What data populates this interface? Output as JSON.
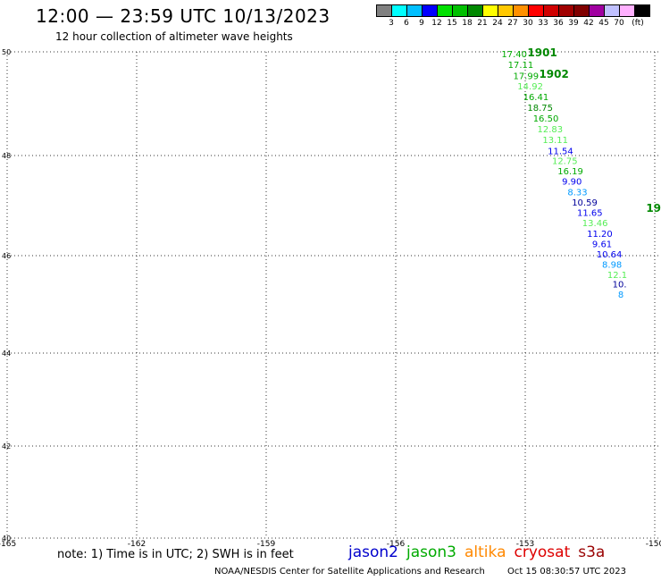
{
  "header": {
    "title": "12:00 — 23:59 UTC 10/13/2023",
    "subtitle": "12 hour collection of altimeter wave heights"
  },
  "scale": {
    "unit_label": "(ft)",
    "colors": [
      "#808080",
      "#00ffff",
      "#00bfff",
      "#0000ff",
      "#00e000",
      "#00c000",
      "#008800",
      "#ffff00",
      "#ffc800",
      "#ff9000",
      "#ff0000",
      "#d00000",
      "#a00000",
      "#800000",
      "#a000a0",
      "#c0c0ff",
      "#ffb0ff",
      "#000000"
    ],
    "labels": [
      "3",
      "6",
      "9",
      "12",
      "15",
      "18",
      "21",
      "24",
      "27",
      "30",
      "33",
      "36",
      "39",
      "42",
      "45",
      "70"
    ]
  },
  "axes": {
    "x_ticks": [
      "-165",
      "-162",
      "-159",
      "-156",
      "-153",
      "-150"
    ],
    "y_ticks": [
      "50",
      "48",
      "46",
      "44",
      "42",
      "40"
    ]
  },
  "chart_data": {
    "type": "scatter",
    "xlim": [
      -165,
      -150
    ],
    "ylim": [
      40,
      50
    ],
    "grid": true,
    "points": [
      {
        "x": -153.55,
        "y": 49.95,
        "value": "17.40",
        "color": "#00aa00"
      },
      {
        "x": -153.4,
        "y": 49.74,
        "value": "17.11",
        "color": "#00aa00"
      },
      {
        "x": -153.28,
        "y": 49.53,
        "value": "17.99",
        "color": "#00aa00"
      },
      {
        "x": -153.18,
        "y": 49.33,
        "value": "14.92",
        "color": "#55ee55"
      },
      {
        "x": -153.05,
        "y": 49.12,
        "value": "16.41",
        "color": "#00aa00"
      },
      {
        "x": -152.95,
        "y": 48.91,
        "value": "18.75",
        "color": "#008800"
      },
      {
        "x": -152.82,
        "y": 48.71,
        "value": "16.50",
        "color": "#00aa00"
      },
      {
        "x": -152.72,
        "y": 48.5,
        "value": "12.83",
        "color": "#55ee55"
      },
      {
        "x": -152.6,
        "y": 48.29,
        "value": "13.11",
        "color": "#55ee55"
      },
      {
        "x": -152.48,
        "y": 48.08,
        "value": "11.54",
        "color": "#0000ee"
      },
      {
        "x": -152.38,
        "y": 47.88,
        "value": "12.75",
        "color": "#55ee55"
      },
      {
        "x": -152.25,
        "y": 47.68,
        "value": "16.19",
        "color": "#00aa00"
      },
      {
        "x": -152.15,
        "y": 47.47,
        "value": "9.90",
        "color": "#0000ee"
      },
      {
        "x": -152.02,
        "y": 47.26,
        "value": "8.33",
        "color": "#0099ff"
      },
      {
        "x": -151.92,
        "y": 47.05,
        "value": "10.59",
        "color": "#000099"
      },
      {
        "x": -151.8,
        "y": 46.85,
        "value": "11.65",
        "color": "#0000ee"
      },
      {
        "x": -151.68,
        "y": 46.64,
        "value": "13.46",
        "color": "#55ee55"
      },
      {
        "x": -151.57,
        "y": 46.43,
        "value": "11.20",
        "color": "#0000ee"
      },
      {
        "x": -151.45,
        "y": 46.22,
        "value": "9.61",
        "color": "#0000ee"
      },
      {
        "x": -151.35,
        "y": 46.02,
        "value": "10.64",
        "color": "#0000ee"
      },
      {
        "x": -151.22,
        "y": 45.81,
        "value": "8.98",
        "color": "#0099ff"
      },
      {
        "x": -151.1,
        "y": 45.6,
        "value": "12.1",
        "color": "#55ee55"
      },
      {
        "x": -150.98,
        "y": 45.4,
        "value": "10.",
        "color": "#000099"
      },
      {
        "x": -150.85,
        "y": 45.19,
        "value": "8",
        "color": "#0099ff"
      }
    ],
    "time_labels": [
      {
        "x": -152.95,
        "y": 49.98,
        "value": "1901"
      },
      {
        "x": -152.68,
        "y": 49.57,
        "value": "1902"
      },
      {
        "x": -150.2,
        "y": 46.95,
        "value": "19"
      }
    ]
  },
  "footer": {
    "note": "note: 1) Time is in UTC; 2) SWH is in feet",
    "satellites": [
      {
        "name": "jason2",
        "color": "#0000cc"
      },
      {
        "name": "jason3",
        "color": "#00aa00"
      },
      {
        "name": "altika",
        "color": "#ff8800"
      },
      {
        "name": "cryosat",
        "color": "#dd0000"
      },
      {
        "name": "s3a",
        "color": "#990000"
      }
    ],
    "credit": "NOAA/NESDIS Center for Satellite Applications and Research",
    "timestamp": "Oct 15 08:30:57 UTC 2023"
  }
}
